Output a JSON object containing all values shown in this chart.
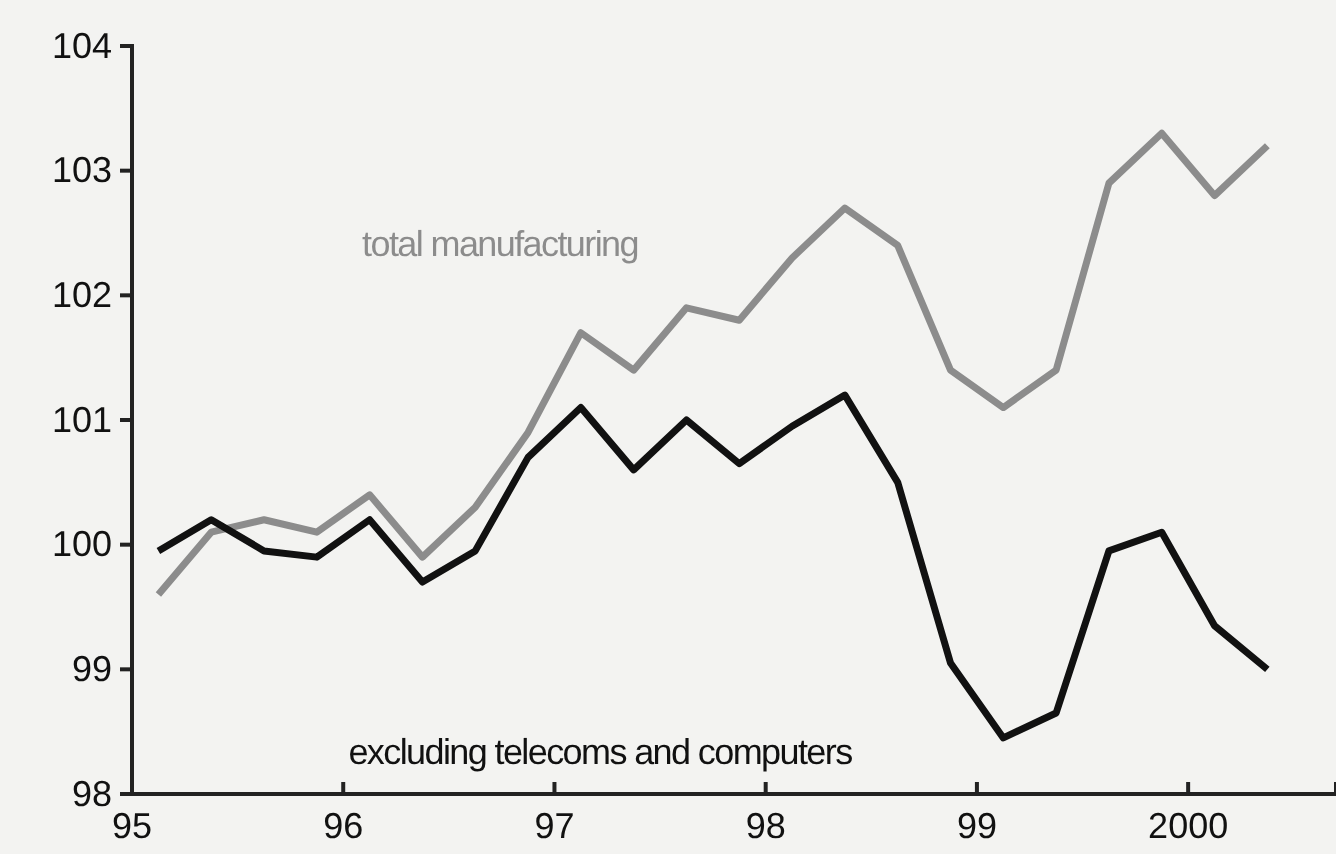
{
  "chart_data": {
    "type": "line",
    "x": [
      1995.125,
      1995.375,
      1995.625,
      1995.875,
      1996.125,
      1996.375,
      1996.625,
      1996.875,
      1997.125,
      1997.375,
      1997.625,
      1997.875,
      1998.125,
      1998.375,
      1998.625,
      1998.875,
      1999.125,
      1999.375,
      1999.625,
      1999.875,
      2000.125,
      2000.375
    ],
    "series": [
      {
        "name": "total manufacturing",
        "color": "#8c8c8c",
        "values": [
          99.6,
          100.1,
          100.2,
          100.1,
          100.4,
          99.9,
          100.3,
          100.9,
          101.7,
          101.4,
          101.9,
          101.8,
          102.3,
          102.7,
          102.4,
          101.4,
          101.1,
          101.4,
          102.9,
          103.3,
          102.8,
          103.2
        ]
      },
      {
        "name": "excluding telecoms and computers",
        "color": "#111111",
        "values": [
          99.95,
          100.2,
          99.95,
          99.9,
          100.2,
          99.7,
          99.95,
          100.7,
          101.1,
          100.6,
          101.0,
          100.65,
          100.95,
          101.2,
          100.5,
          99.05,
          98.45,
          98.65,
          99.95,
          100.1,
          99.35,
          99.0
        ]
      }
    ],
    "xlim": [
      1995,
      2000.7
    ],
    "xticks": [
      {
        "value": 1995,
        "label": "95"
      },
      {
        "value": 1996,
        "label": "96"
      },
      {
        "value": 1997,
        "label": "97"
      },
      {
        "value": 1998,
        "label": "98"
      },
      {
        "value": 1999,
        "label": "99"
      },
      2000
    ],
    "ylim": [
      98,
      104
    ],
    "yticks": [
      98,
      99,
      100,
      101,
      102,
      103,
      104
    ],
    "grid": false,
    "legend": false,
    "marker": "none",
    "line_style": "solid"
  }
}
